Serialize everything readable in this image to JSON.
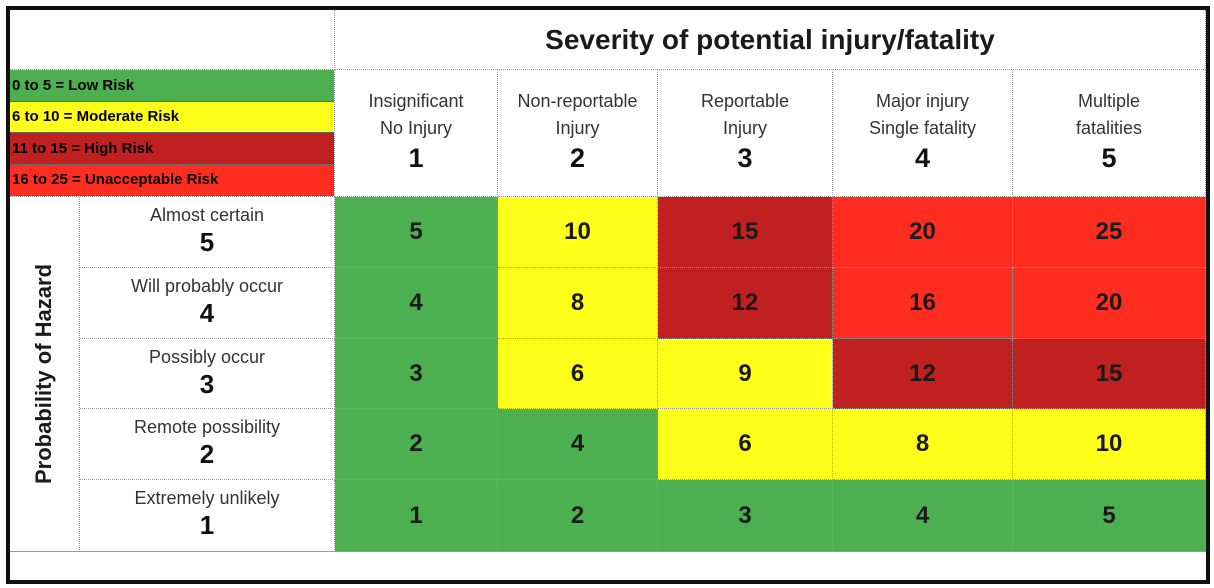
{
  "chart_data": {
    "type": "heatmap",
    "title": "Severity of potential injury/fatality",
    "ylabel": "Probability of Hazard",
    "legend": [
      {
        "label": "0 to 5 = Low Risk",
        "color": "#4caf50",
        "min": 0,
        "max": 5
      },
      {
        "label": "6 to 10 = Moderate Risk",
        "color": "#ffff1a",
        "min": 6,
        "max": 10
      },
      {
        "label": "11 to 15 = High Risk",
        "color": "#c0201f",
        "min": 11,
        "max": 15
      },
      {
        "label": "16 to 25 = Unacceptable Risk",
        "color": "#ff2d1f",
        "min": 16,
        "max": 25
      }
    ],
    "columns": [
      {
        "lines": [
          "Insignificant",
          "No Injury"
        ],
        "value": "1"
      },
      {
        "lines": [
          "Non-reportable",
          "Injury"
        ],
        "value": "2"
      },
      {
        "lines": [
          "Reportable",
          "Injury"
        ],
        "value": "3"
      },
      {
        "lines": [
          "Major injury",
          "Single fatality"
        ],
        "value": "4"
      },
      {
        "lines": [
          "Multiple",
          "fatalities"
        ],
        "value": "5"
      }
    ],
    "rows": [
      {
        "label": "Almost certain",
        "value": "5"
      },
      {
        "label": "Will probably occur",
        "value": "4"
      },
      {
        "label": "Possibly occur",
        "value": "3"
      },
      {
        "label": "Remote possibility",
        "value": "2"
      },
      {
        "label": "Extremely unlikely",
        "value": "1"
      }
    ],
    "values": [
      [
        5,
        10,
        15,
        20,
        25
      ],
      [
        4,
        8,
        12,
        16,
        20
      ],
      [
        3,
        6,
        9,
        12,
        15
      ],
      [
        2,
        4,
        6,
        8,
        10
      ],
      [
        1,
        2,
        3,
        4,
        5
      ]
    ],
    "cell_colors": [
      [
        "#4caf50",
        "#ffff1a",
        "#c0201f",
        "#ff2d1f",
        "#ff2d1f"
      ],
      [
        "#4caf50",
        "#ffff1a",
        "#c0201f",
        "#ff2d1f",
        "#ff2d1f"
      ],
      [
        "#4caf50",
        "#ffff1a",
        "#ffff1a",
        "#c0201f",
        "#c0201f"
      ],
      [
        "#4caf50",
        "#4caf50",
        "#ffff1a",
        "#ffff1a",
        "#ffff1a"
      ],
      [
        "#4caf50",
        "#4caf50",
        "#4caf50",
        "#4caf50",
        "#4caf50"
      ]
    ]
  }
}
